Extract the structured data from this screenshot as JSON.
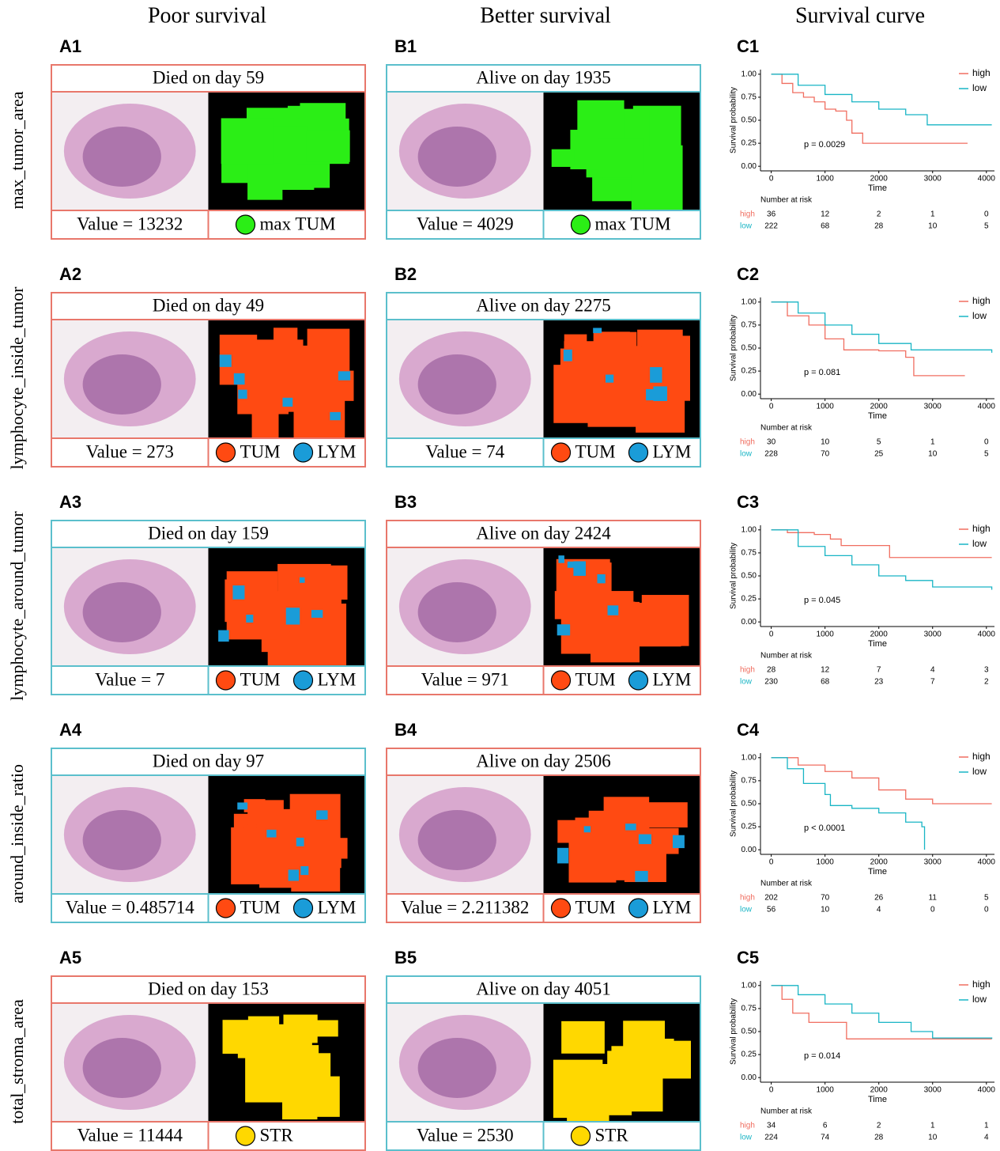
{
  "column_headers": [
    "Poor survival",
    "Better survival",
    "Survival curve"
  ],
  "rows": [
    {
      "feature": "max_tumor_area",
      "panels": [
        {
          "label": "A1",
          "header": "Died on day 59",
          "value": "Value = 13232",
          "border_color": "#e8776b",
          "legend": [
            {
              "name": "max TUM",
              "color": "#2bee16"
            }
          ]
        },
        {
          "label": "B1",
          "header": "Alive on day 1935",
          "value": "Value = 4029",
          "border_color": "#5bbfcc",
          "legend": [
            {
              "name": "max TUM",
              "color": "#2bee16"
            }
          ]
        }
      ]
    },
    {
      "feature": "lymphocyte_inside_tumor",
      "panels": [
        {
          "label": "A2",
          "header": "Died on day 49",
          "value": "Value = 273",
          "border_color": "#e8776b",
          "legend": [
            {
              "name": "TUM",
              "color": "#ff4a12"
            },
            {
              "name": "LYM",
              "color": "#1a9cd8"
            }
          ]
        },
        {
          "label": "B2",
          "header": "Alive on day 2275",
          "value": "Value = 74",
          "border_color": "#5bbfcc",
          "legend": [
            {
              "name": "TUM",
              "color": "#ff4a12"
            },
            {
              "name": "LYM",
              "color": "#1a9cd8"
            }
          ]
        }
      ]
    },
    {
      "feature": "lymphocyte_around_tumor",
      "panels": [
        {
          "label": "A3",
          "header": "Died on day 159",
          "value": "Value = 7",
          "border_color": "#5bbfcc",
          "legend": [
            {
              "name": "TUM",
              "color": "#ff4a12"
            },
            {
              "name": "LYM",
              "color": "#1a9cd8"
            }
          ]
        },
        {
          "label": "B3",
          "header": "Alive on day 2424",
          "value": "Value = 971",
          "border_color": "#e8776b",
          "legend": [
            {
              "name": "TUM",
              "color": "#ff4a12"
            },
            {
              "name": "LYM",
              "color": "#1a9cd8"
            }
          ]
        }
      ]
    },
    {
      "feature": "around_inside_ratio",
      "panels": [
        {
          "label": "A4",
          "header": "Died on day 97",
          "value": "Value = 0.485714",
          "border_color": "#5bbfcc",
          "legend": [
            {
              "name": "TUM",
              "color": "#ff4a12"
            },
            {
              "name": "LYM",
              "color": "#1a9cd8"
            }
          ]
        },
        {
          "label": "B4",
          "header": "Alive on day 2506",
          "value": "Value = 2.211382",
          "border_color": "#e8776b",
          "legend": [
            {
              "name": "TUM",
              "color": "#ff4a12"
            },
            {
              "name": "LYM",
              "color": "#1a9cd8"
            }
          ]
        }
      ]
    },
    {
      "feature": "total_stroma_area",
      "panels": [
        {
          "label": "A5",
          "header": "Died on day 153",
          "value": "Value = 11444",
          "border_color": "#e8776b",
          "legend": [
            {
              "name": "STR",
              "color": "#ffd800"
            }
          ]
        },
        {
          "label": "B5",
          "header": "Alive on day 4051",
          "value": "Value = 2530",
          "border_color": "#5bbfcc",
          "legend": [
            {
              "name": "STR",
              "color": "#ffd800"
            }
          ]
        }
      ]
    }
  ],
  "chart_data": [
    {
      "type": "line",
      "step": true,
      "title": "C1",
      "ylabel": "Survival probability",
      "xlabel": "Time",
      "annotation": "p = 0.0029",
      "risk_title": "Number at risk",
      "legend": "upper right",
      "xlim": [
        -200,
        4150
      ],
      "ylim": [
        -0.05,
        1.05
      ],
      "xticks": [
        0,
        1000,
        2000,
        3000,
        4000
      ],
      "yticks": [
        {
          "value": 0,
          "label": "0.00"
        },
        {
          "value": 0.25,
          "label": "0.25"
        },
        {
          "value": 0.5,
          "label": "0.50"
        },
        {
          "value": 0.75,
          "label": "0.75"
        },
        {
          "value": 1,
          "label": "1.00"
        }
      ],
      "series": [
        {
          "name": "high",
          "color": "#f06e60",
          "x": [
            0,
            200,
            400,
            600,
            800,
            1000,
            1200,
            1400,
            1500,
            1700,
            3650
          ],
          "values": [
            1,
            0.9,
            0.8,
            0.75,
            0.7,
            0.62,
            0.6,
            0.5,
            0.36,
            0.25,
            0.25
          ],
          "at_risk": [
            36,
            12,
            2,
            1,
            0
          ]
        },
        {
          "name": "low",
          "color": "#19b5c5",
          "x": [
            0,
            500,
            1000,
            1500,
            2000,
            2500,
            2900,
            4100
          ],
          "values": [
            1,
            0.88,
            0.78,
            0.7,
            0.62,
            0.56,
            0.45,
            0.45
          ],
          "at_risk": [
            222,
            68,
            28,
            10,
            5
          ]
        }
      ]
    },
    {
      "type": "line",
      "step": true,
      "title": "C2",
      "ylabel": "Survival probability",
      "xlabel": "Time",
      "annotation": "p = 0.081",
      "risk_title": "Number at risk",
      "legend": "upper right",
      "xlim": [
        -200,
        4150
      ],
      "ylim": [
        -0.05,
        1.05
      ],
      "xticks": [
        0,
        1000,
        2000,
        3000,
        4000
      ],
      "yticks": [
        {
          "value": 0,
          "label": "0.00"
        },
        {
          "value": 0.25,
          "label": "0.25"
        },
        {
          "value": 0.5,
          "label": "0.50"
        },
        {
          "value": 0.75,
          "label": "0.75"
        },
        {
          "value": 1,
          "label": "1.00"
        }
      ],
      "series": [
        {
          "name": "high",
          "color": "#f06e60",
          "x": [
            0,
            300,
            700,
            1000,
            1350,
            2000,
            2500,
            2650,
            3600
          ],
          "values": [
            1,
            0.85,
            0.75,
            0.6,
            0.48,
            0.47,
            0.4,
            0.2,
            0.2
          ],
          "at_risk": [
            30,
            10,
            5,
            1,
            0
          ]
        },
        {
          "name": "low",
          "color": "#19b5c5",
          "x": [
            0,
            500,
            1000,
            1500,
            2000,
            2600,
            4100
          ],
          "values": [
            1,
            0.88,
            0.75,
            0.65,
            0.55,
            0.48,
            0.45
          ],
          "at_risk": [
            228,
            70,
            25,
            10,
            5
          ]
        }
      ]
    },
    {
      "type": "line",
      "step": true,
      "title": "C3",
      "ylabel": "Survival probability",
      "xlabel": "Time",
      "annotation": "p = 0.045",
      "risk_title": "Number at risk",
      "legend": "upper right",
      "xlim": [
        -200,
        4150
      ],
      "ylim": [
        -0.05,
        1.05
      ],
      "xticks": [
        0,
        1000,
        2000,
        3000,
        4000
      ],
      "yticks": [
        {
          "value": 0,
          "label": "0.00"
        },
        {
          "value": 0.25,
          "label": "0.25"
        },
        {
          "value": 0.5,
          "label": "0.50"
        },
        {
          "value": 0.75,
          "label": "0.75"
        },
        {
          "value": 1,
          "label": "1.00"
        }
      ],
      "series": [
        {
          "name": "high",
          "color": "#f06e60",
          "x": [
            0,
            300,
            800,
            1100,
            1300,
            2200,
            4100
          ],
          "values": [
            1,
            0.97,
            0.95,
            0.9,
            0.83,
            0.7,
            0.7
          ],
          "at_risk": [
            28,
            12,
            7,
            4,
            3
          ]
        },
        {
          "name": "low",
          "color": "#19b5c5",
          "x": [
            0,
            500,
            1000,
            1500,
            2000,
            2500,
            3000,
            4100
          ],
          "values": [
            1,
            0.82,
            0.72,
            0.62,
            0.5,
            0.45,
            0.38,
            0.35
          ],
          "at_risk": [
            230,
            68,
            23,
            7,
            2
          ]
        }
      ]
    },
    {
      "type": "line",
      "step": true,
      "title": "C4",
      "ylabel": "Survival probability",
      "xlabel": "Time",
      "annotation": "p < 0.0001",
      "risk_title": "Number at risk",
      "legend": "upper right",
      "xlim": [
        -200,
        4150
      ],
      "ylim": [
        -0.05,
        1.05
      ],
      "xticks": [
        0,
        1000,
        2000,
        3000,
        4000
      ],
      "yticks": [
        {
          "value": 0,
          "label": "0.00"
        },
        {
          "value": 0.25,
          "label": "0.25"
        },
        {
          "value": 0.5,
          "label": "0.50"
        },
        {
          "value": 0.75,
          "label": "0.75"
        },
        {
          "value": 1,
          "label": "1.00"
        }
      ],
      "series": [
        {
          "name": "high",
          "color": "#f06e60",
          "x": [
            0,
            500,
            1000,
            1500,
            2000,
            2500,
            3000,
            4100
          ],
          "values": [
            1,
            0.92,
            0.85,
            0.78,
            0.65,
            0.55,
            0.5,
            0.5
          ],
          "at_risk": [
            202,
            70,
            26,
            11,
            5
          ]
        },
        {
          "name": "low",
          "color": "#19b5c5",
          "x": [
            0,
            300,
            600,
            1000,
            1100,
            1500,
            2000,
            2500,
            2800,
            2850
          ],
          "values": [
            1,
            0.88,
            0.72,
            0.6,
            0.48,
            0.45,
            0.4,
            0.3,
            0.25,
            0
          ],
          "at_risk": [
            56,
            10,
            4,
            0,
            0
          ]
        }
      ]
    },
    {
      "type": "line",
      "step": true,
      "title": "C5",
      "ylabel": "Survival probability",
      "xlabel": "Time",
      "annotation": "p = 0.014",
      "risk_title": "Number at risk",
      "legend": "upper right",
      "xlim": [
        -200,
        4150
      ],
      "ylim": [
        -0.05,
        1.05
      ],
      "xticks": [
        0,
        1000,
        2000,
        3000,
        4000
      ],
      "yticks": [
        {
          "value": 0,
          "label": "0.00"
        },
        {
          "value": 0.25,
          "label": "0.25"
        },
        {
          "value": 0.5,
          "label": "0.50"
        },
        {
          "value": 0.75,
          "label": "0.75"
        },
        {
          "value": 1,
          "label": "1.00"
        }
      ],
      "series": [
        {
          "name": "high",
          "color": "#f06e60",
          "x": [
            0,
            200,
            400,
            700,
            1400,
            4100
          ],
          "values": [
            1,
            0.85,
            0.7,
            0.6,
            0.42,
            0.42
          ],
          "at_risk": [
            34,
            6,
            2,
            1,
            1
          ]
        },
        {
          "name": "low",
          "color": "#19b5c5",
          "x": [
            0,
            500,
            1000,
            1500,
            2000,
            2600,
            3000,
            4100
          ],
          "values": [
            1,
            0.9,
            0.8,
            0.7,
            0.6,
            0.5,
            0.43,
            0.42
          ],
          "at_risk": [
            224,
            74,
            28,
            10,
            4
          ]
        }
      ]
    }
  ]
}
